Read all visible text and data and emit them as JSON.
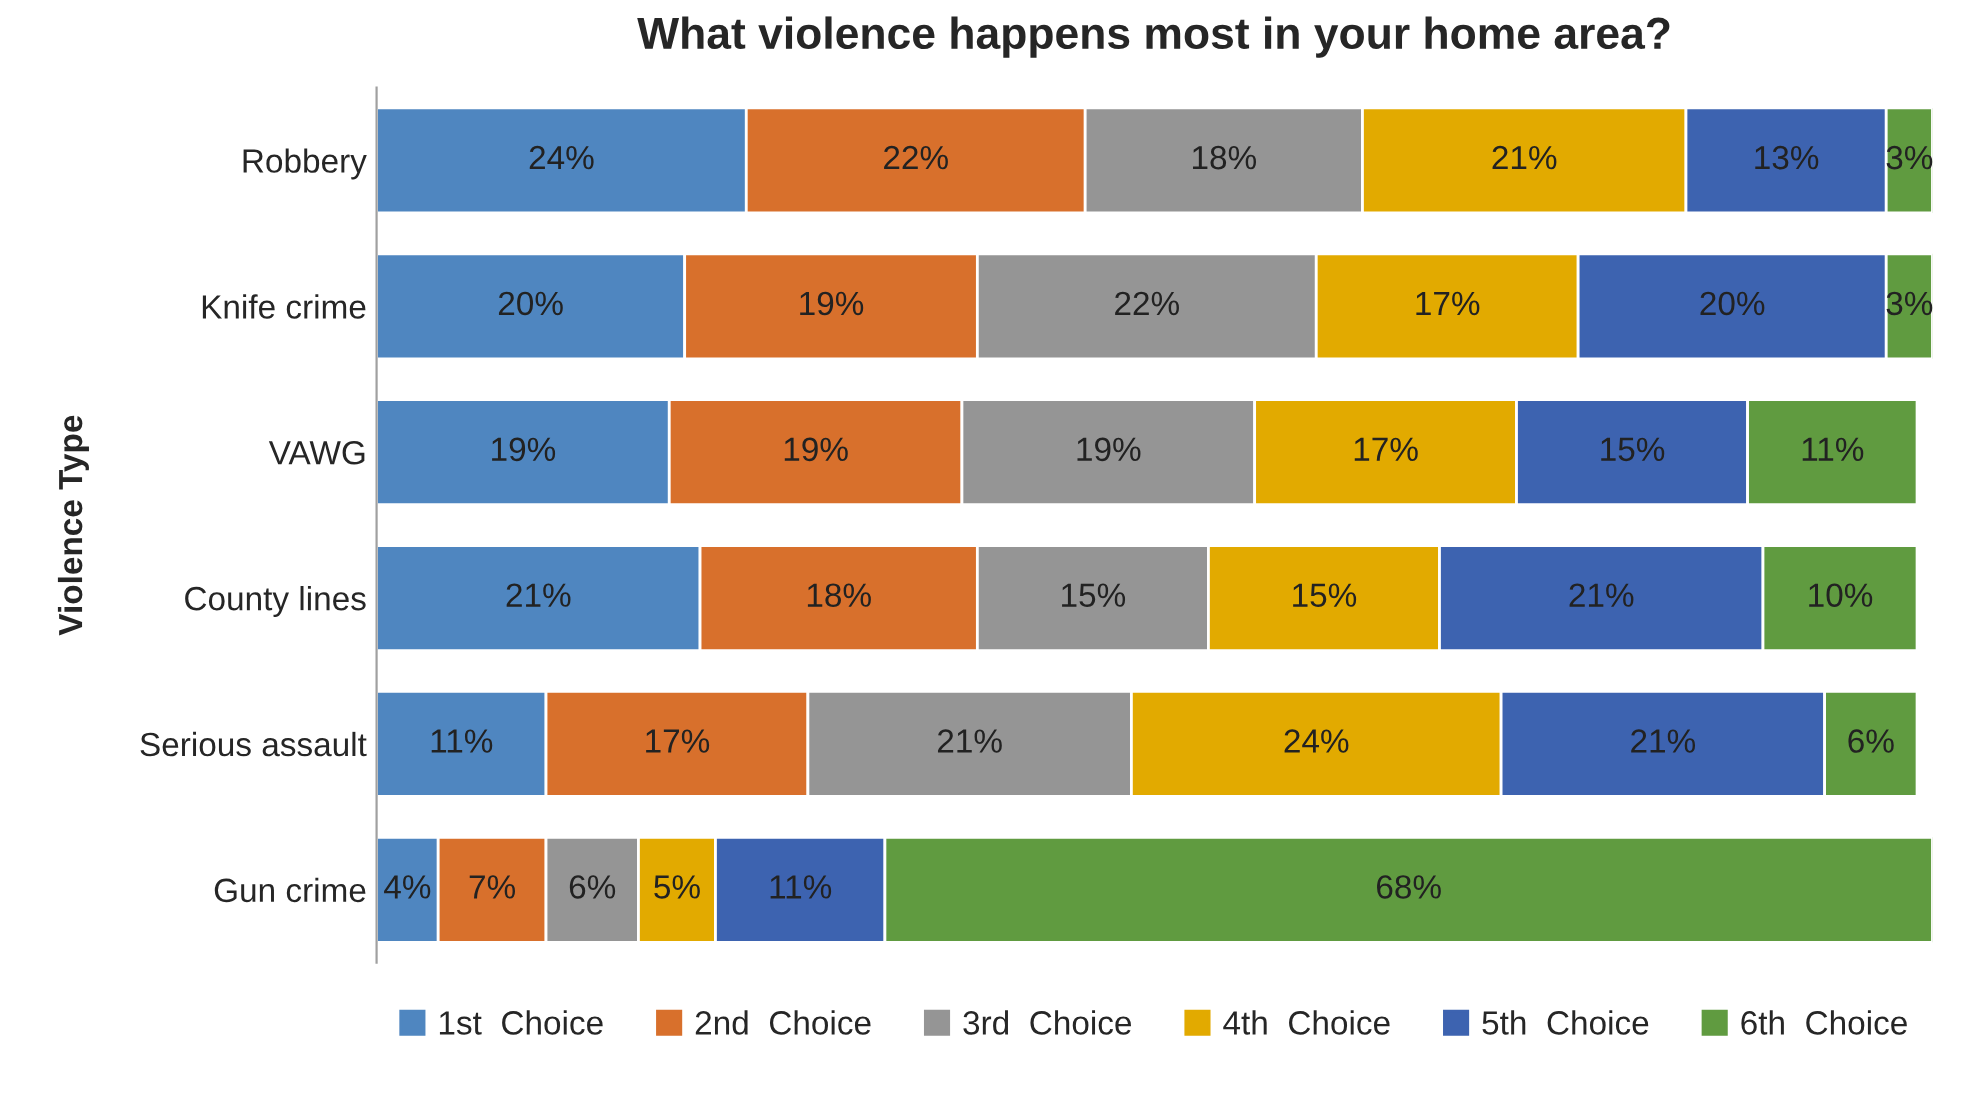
{
  "chart_data": {
    "type": "bar",
    "orientation": "horizontal",
    "stacked": true,
    "title": "What violence happens most in your home area?",
    "ylabel": "Violence Type",
    "categories": [
      "Robbery",
      "Knife crime",
      "VAWG",
      "County lines",
      "Serious assault",
      "Gun crime"
    ],
    "series": [
      {
        "name": "1st  Choice",
        "color": "#4f86c0",
        "values": [
          24,
          20,
          19,
          21,
          11,
          4
        ],
        "value_labels": [
          "24%",
          "20%",
          "19%",
          "21%",
          "11%",
          "4%"
        ]
      },
      {
        "name": "2nd  Choice",
        "color": "#d8702c",
        "values": [
          22,
          19,
          19,
          18,
          17,
          7
        ],
        "value_labels": [
          "22%",
          "19%",
          "19%",
          "18%",
          "17%",
          "7%"
        ]
      },
      {
        "name": "3rd  Choice",
        "color": "#959595",
        "values": [
          18,
          22,
          19,
          15,
          21,
          6
        ],
        "value_labels": [
          "18%",
          "22%",
          "19%",
          "15%",
          "21%",
          "6%"
        ]
      },
      {
        "name": "4th  Choice",
        "color": "#e2aa00",
        "values": [
          21,
          17,
          17,
          15,
          24,
          5
        ],
        "value_labels": [
          "21%",
          "17%",
          "17%",
          "15%",
          "24%",
          "5%"
        ]
      },
      {
        "name": "5th  Choice",
        "color": "#3d63b0",
        "values": [
          13,
          20,
          15,
          21,
          21,
          11
        ],
        "value_labels": [
          "13%",
          "20%",
          "15%",
          "21%",
          "21%",
          "11%"
        ]
      },
      {
        "name": "6th  Choice",
        "color": "#609b40",
        "values": [
          3,
          3,
          11,
          10,
          6,
          68
        ],
        "value_labels": [
          "3%",
          "3%",
          "11%",
          "10%",
          "6%",
          "68%"
        ]
      }
    ],
    "legend": "bottom",
    "tick_labels": "y",
    "grid": false
  }
}
